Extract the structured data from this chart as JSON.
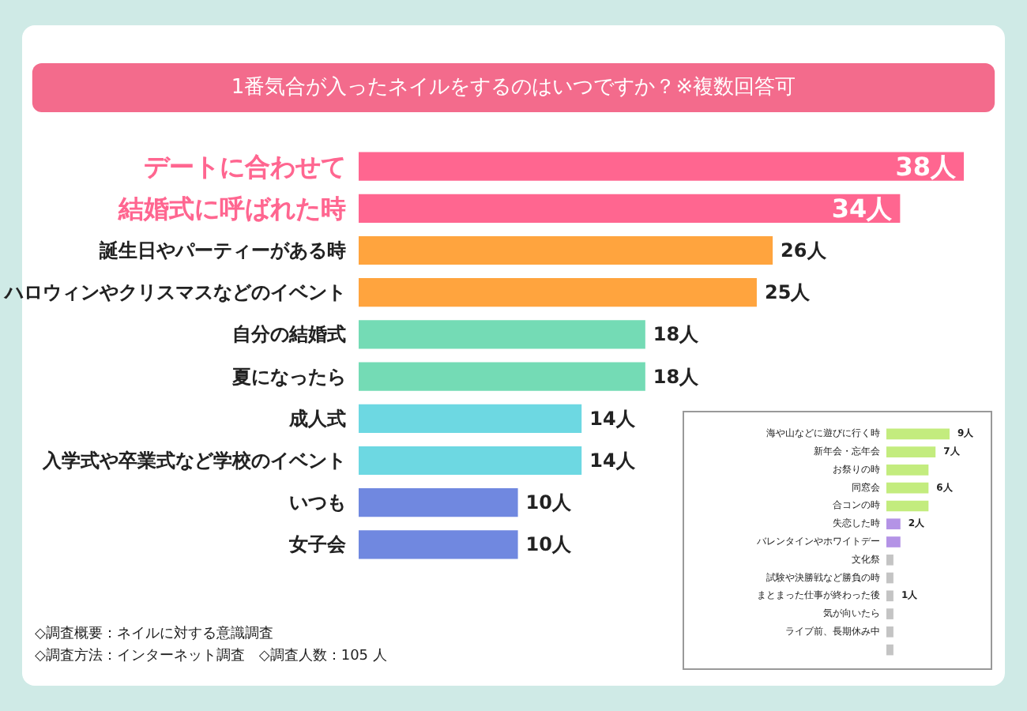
{
  "chart_data": [
    {
      "type": "bar",
      "orientation": "horizontal",
      "title": "1番気合が入ったネイルをするのはいつですか？※複数回答可",
      "categories": [
        "デートに合わせて",
        "結婚式に呼ばれた時",
        "誕生日やパーティーがある時",
        "ハロウィンやクリスマスなどのイベント",
        "自分の結婚式",
        "夏になったら",
        "成人式",
        "入学式や卒業式など学校のイベント",
        "いつも",
        "女子会"
      ],
      "values": [
        38,
        34,
        26,
        25,
        18,
        18,
        14,
        14,
        10,
        10
      ],
      "colors": [
        "#ff6690",
        "#ff6690",
        "#ffa43e",
        "#ffa43e",
        "#74dbb5",
        "#74dbb5",
        "#6dd8e2",
        "#6dd8e2",
        "#7088e0",
        "#7088e0"
      ],
      "value_labels": [
        "38人",
        "34人",
        "26人",
        "25人",
        "18人",
        "18人",
        "14人",
        "14人",
        "10人",
        "10人"
      ],
      "annotations": [
        "◇調査概要：ネイルに対する意識調査",
        "◇調査方法：インターネット調査　◇調査人数：105 人"
      ]
    },
    {
      "type": "bar",
      "orientation": "horizontal",
      "categories": [
        "海や山などに遊びに行く時",
        "新年会・忘年会",
        "お祭りの時",
        "同窓会",
        "合コンの時",
        "失恋した時",
        "バレンタインやホワイトデー",
        "文化祭",
        "試験や決勝戦など勝負の時",
        "まとまった仕事が終わった後",
        "気が向いたら",
        "ライブ前、長期休み中",
        null
      ],
      "values": [
        9,
        7,
        6,
        6,
        6,
        2,
        2,
        1,
        1,
        1,
        1,
        1,
        1
      ],
      "colors": [
        "#c3ec7e",
        "#c3ec7e",
        "#c3ec7e",
        "#c3ec7e",
        "#c3ec7e",
        "#b493e6",
        "#b493e6",
        "#c4c4c4",
        "#c4c4c4",
        "#c4c4c4",
        "#c4c4c4",
        "#c4c4c4",
        "#c4c4c4"
      ],
      "value_labels": [
        "9人",
        "7人",
        null,
        "6人",
        null,
        "2人",
        null,
        null,
        null,
        "1人",
        null,
        null,
        null
      ]
    }
  ]
}
